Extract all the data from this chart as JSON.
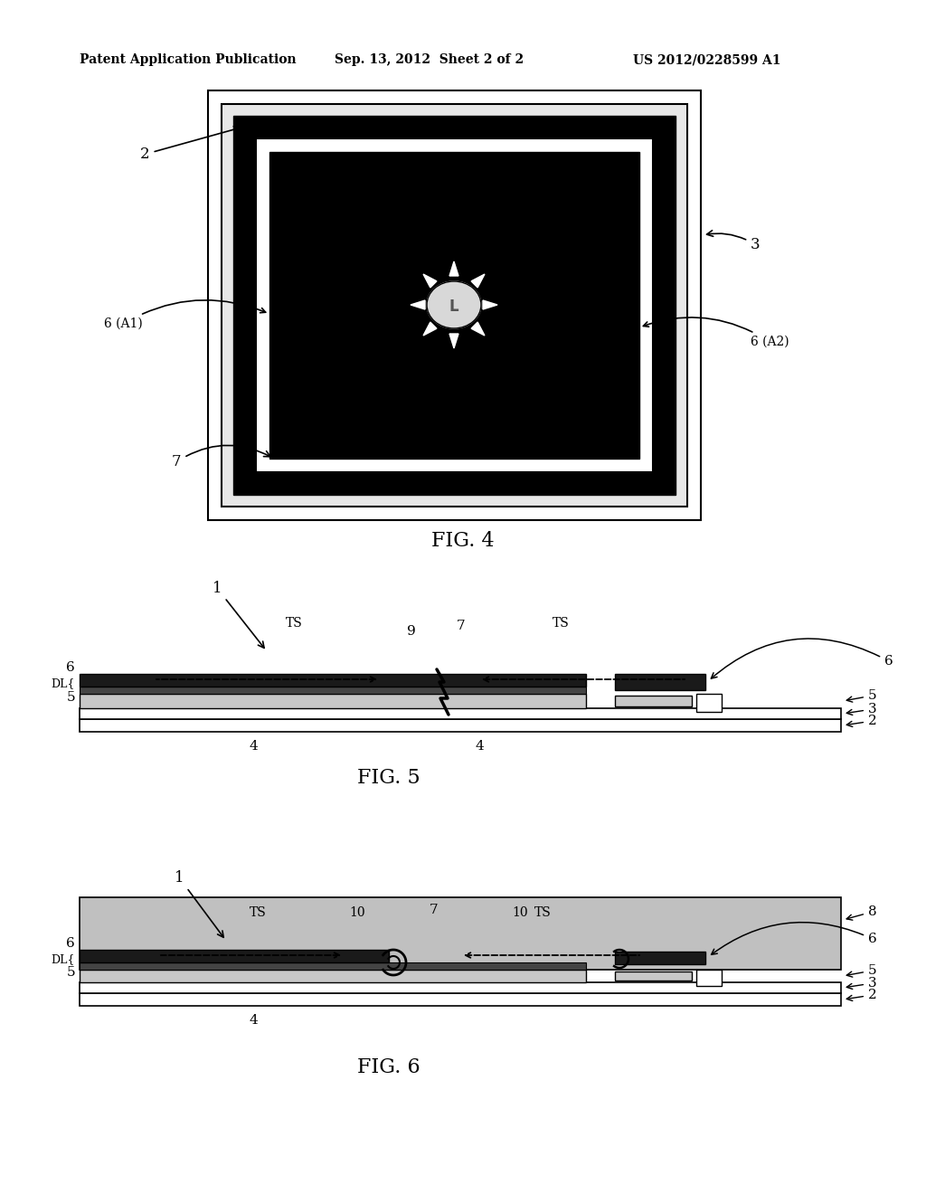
{
  "header_left": "Patent Application Publication",
  "header_mid": "Sep. 13, 2012  Sheet 2 of 2",
  "header_right": "US 2012/0228599 A1",
  "fig4_label": "FIG. 4",
  "fig5_label": "FIG. 5",
  "fig6_label": "FIG. 6",
  "bg": "#ffffff",
  "black": "#000000",
  "dark_electrode": "#1a1a1a",
  "mid_layer": "#888888",
  "light_hatched": "#c8c8c8",
  "encapsulant_gray": "#c0c0c0"
}
